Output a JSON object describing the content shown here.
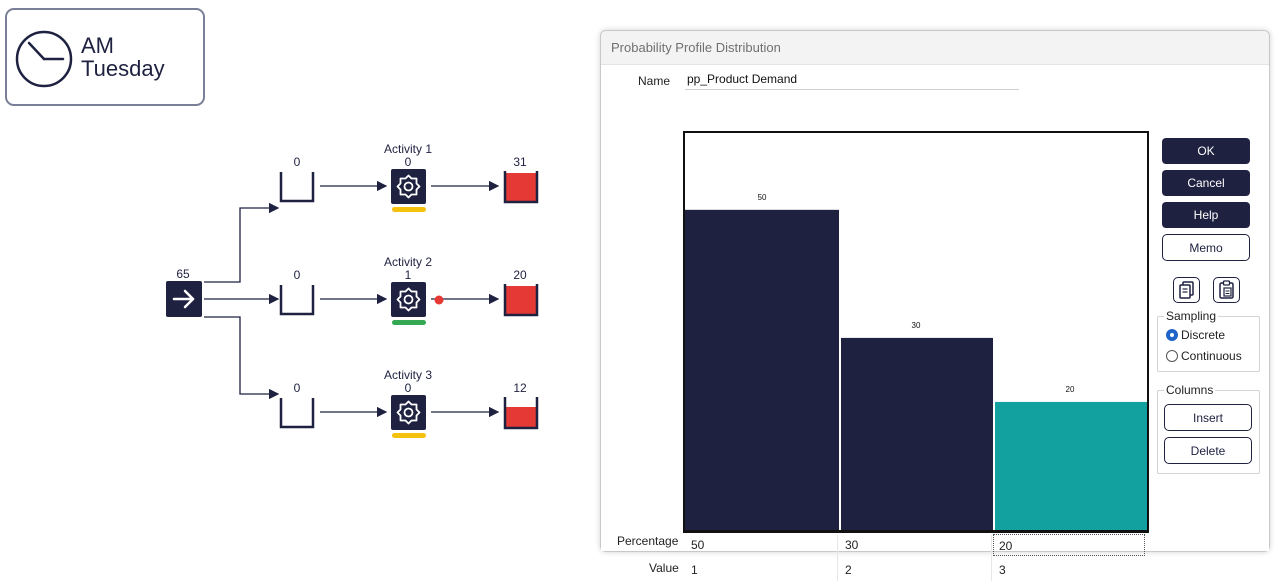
{
  "clock": {
    "line1": "AM",
    "line2": "Tuesday",
    "icon": "clock-icon"
  },
  "model": {
    "arrival_count": "65",
    "activities": [
      {
        "label": "Activity 1",
        "count": "0",
        "queue_count": "0",
        "exit_count": "31",
        "status_color": "#f4c20d"
      },
      {
        "label": "Activity 2",
        "count": "1",
        "queue_count": "0",
        "exit_count": "20",
        "status_color": "#34a853"
      },
      {
        "label": "Activity 3",
        "count": "0",
        "queue_count": "0",
        "exit_count": "12",
        "status_color": "#f4c20d"
      }
    ],
    "colors": {
      "node": "#1e2140",
      "exit_fill": "#e53935",
      "indicator": "#e53935"
    }
  },
  "dialog": {
    "title": "Probability Profile Distribution",
    "name_label": "Name",
    "name_value": "pp_Product Demand",
    "buttons": {
      "ok": "OK",
      "cancel": "Cancel",
      "help": "Help",
      "memo": "Memo"
    },
    "icons": {
      "copy": "copy-icon",
      "paste": "paste-icon"
    },
    "sampling": {
      "title": "Sampling",
      "options": [
        "Discrete",
        "Continuous"
      ],
      "selected": "Discrete"
    },
    "columns": {
      "title": "Columns",
      "insert": "Insert",
      "delete": "Delete"
    },
    "row_labels": {
      "percentage": "Percentage",
      "value": "Value"
    }
  },
  "chart_data": {
    "type": "bar",
    "categories": [
      "1",
      "2",
      "3"
    ],
    "values": [
      50,
      30,
      20
    ],
    "data_labels": [
      "50",
      "30",
      "20"
    ],
    "percentages": [
      "50",
      "30",
      "20"
    ],
    "ylim": [
      0,
      62
    ],
    "colors": [
      "#1e2140",
      "#1e2140",
      "#13a19f"
    ],
    "selected_index": 2,
    "grid": false
  }
}
